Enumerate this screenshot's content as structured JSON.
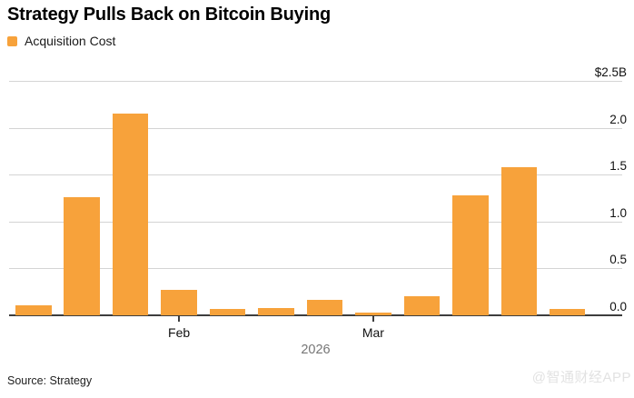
{
  "header": {
    "title": "Strategy Pulls Back on Bitcoin Buying",
    "legend_label": "Acquisition Cost"
  },
  "footer": {
    "source": "Source: Strategy",
    "watermark": "@智通财经APP"
  },
  "colors": {
    "bar_orange": "#F7A23B",
    "gridline": "#D4D4D4",
    "axis": "#3D3D3D",
    "year_gray": "#767676",
    "watermark_gray": "#E2E2E2"
  },
  "chart_data": {
    "type": "bar",
    "title": "Strategy Pulls Back on Bitcoin Buying",
    "series_name": "Acquisition Cost",
    "unit": "billion USD",
    "x_description": "Weekly bitcoin acquisition cost, Jan-Mar 2026",
    "values": [
      0.11,
      1.26,
      2.15,
      0.27,
      0.07,
      0.08,
      0.16,
      0.03,
      0.2,
      1.28,
      1.58,
      0.07
    ],
    "x_ticks": [
      {
        "label": "Feb",
        "bar_index": 3
      },
      {
        "label": "Mar",
        "bar_index": 7
      }
    ],
    "x_axis_year": "2026",
    "y_tick_labels": [
      "$2.5B",
      "2.0",
      "1.5",
      "1.0",
      "0.5",
      "0.0"
    ],
    "y_tick_values": [
      2.5,
      2.0,
      1.5,
      1.0,
      0.5,
      0.0
    ],
    "ylim": [
      0,
      2.5
    ],
    "grid": true,
    "legend_position": "top-left",
    "y_axis_side": "right",
    "bar_color": "#F7A23B"
  }
}
